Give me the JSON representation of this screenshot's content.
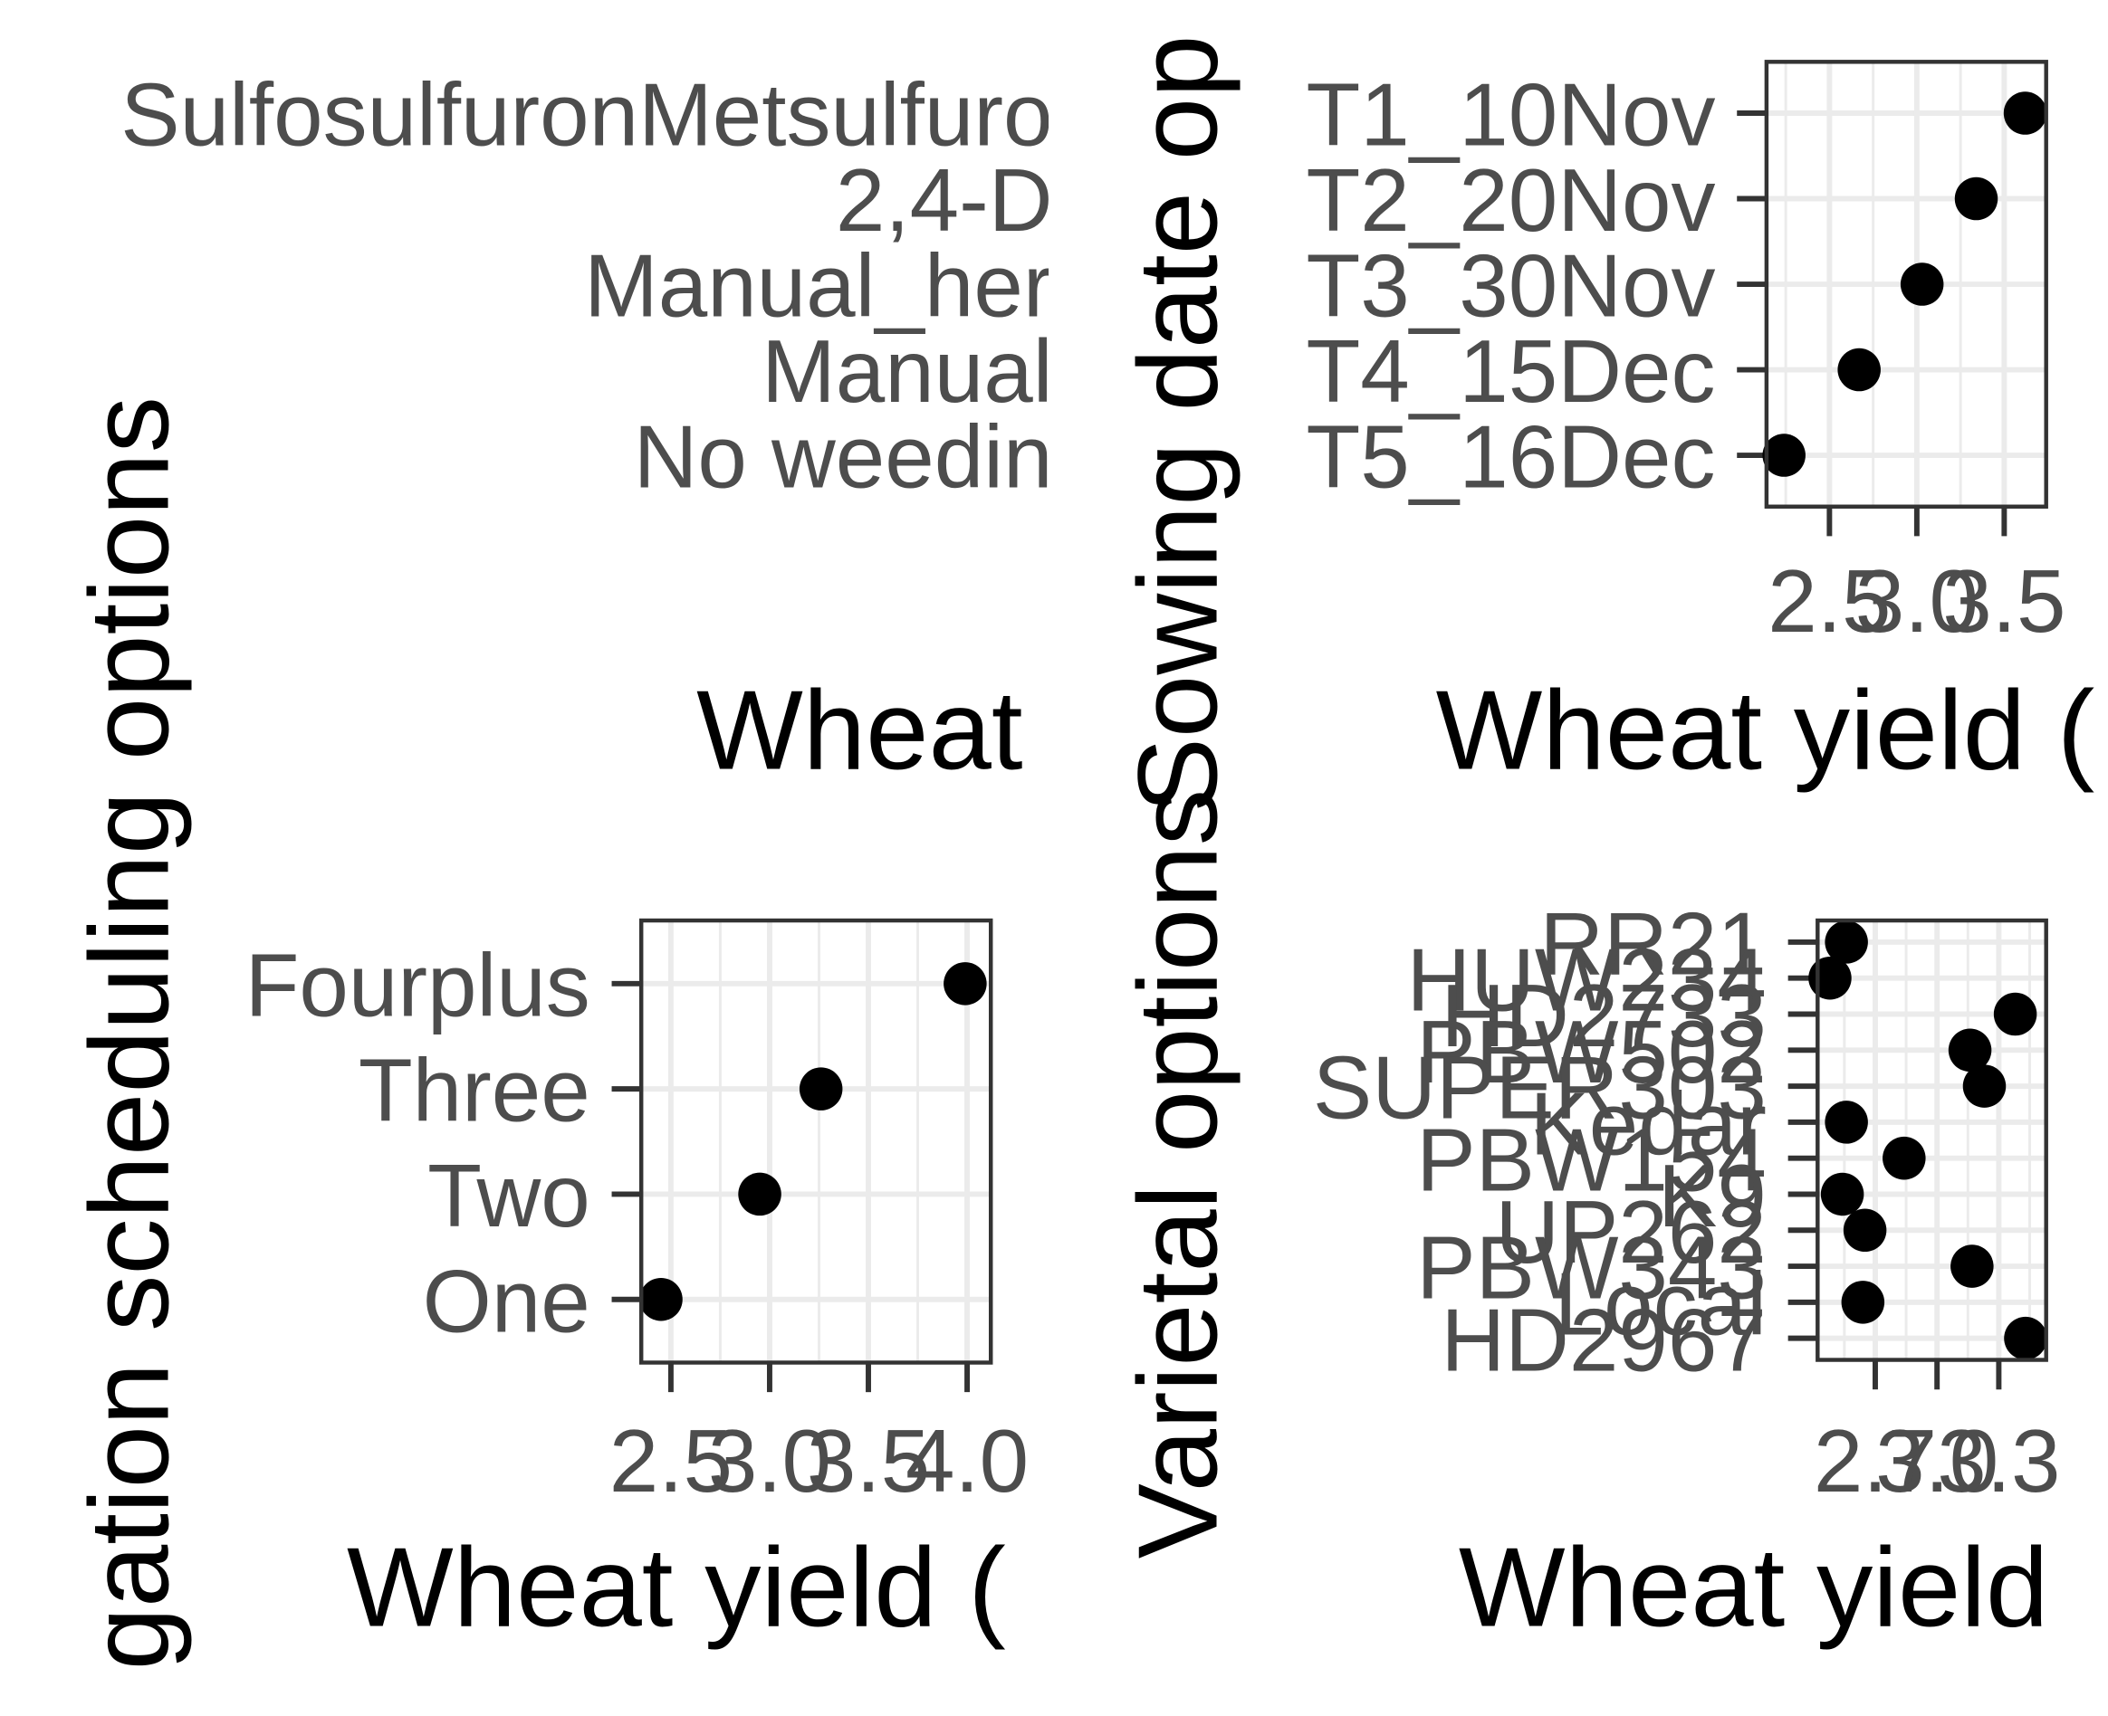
{
  "chart_data": [
    {
      "type": "dot",
      "xlabel": "Wheat",
      "categories": [
        "SulfosulfuronMetsulfuro",
        "2,4-D",
        "Manual_her",
        "Manual",
        "No weedin"
      ]
    },
    {
      "type": "dot",
      "ylabel": "Sowing date op",
      "xlabel": "Wheat yield (",
      "categories": [
        "T1_10Nov",
        "T2_20Nov",
        "T3_30Nov",
        "T4_15Dec",
        "T5_16Dec"
      ],
      "values": [
        3.62,
        3.34,
        3.03,
        2.67,
        2.24
      ],
      "color": "#000000",
      "xlim": [
        2.14,
        3.74
      ],
      "xticks": [
        2.5,
        {
          "value": 3,
          "label": "3.0"
        },
        3.5
      ],
      "grid": true
    },
    {
      "type": "dot",
      "ylabel": "gation scheduling options",
      "xlabel": "Wheat yield (",
      "categories": [
        "Fourplus",
        "Three",
        "Two",
        "One"
      ],
      "values": [
        3.99,
        3.26,
        2.95,
        2.45
      ],
      "color": "#000000",
      "xlim": [
        2.35,
        4.12
      ],
      "xticks": [
        2.5,
        {
          "value": 3,
          "label": "3.0"
        },
        3.5,
        {
          "value": 4,
          "label": "4.0"
        }
      ],
      "grid": true
    },
    {
      "type": "dot",
      "ylabel": "Varietal options",
      "xlabel": "Wheat yield",
      "categories": [
        "RR21",
        "HUW234",
        "HD2733",
        "PBW502",
        "SUPER303",
        "Kedar",
        "PBW154",
        "K9",
        "UP262",
        "PBW343",
        "Local",
        "HD2967"
      ],
      "values": [
        2.56,
        2.48,
        3.38,
        3.16,
        3.23,
        2.56,
        2.84,
        2.54,
        2.65,
        3.17,
        2.64,
        3.43
      ],
      "color": "#000000",
      "xlim": [
        2.42,
        3.53
      ],
      "xticks": [
        2.7,
        {
          "value": 3,
          "label": "3.0"
        },
        3.3
      ],
      "grid": true
    }
  ]
}
